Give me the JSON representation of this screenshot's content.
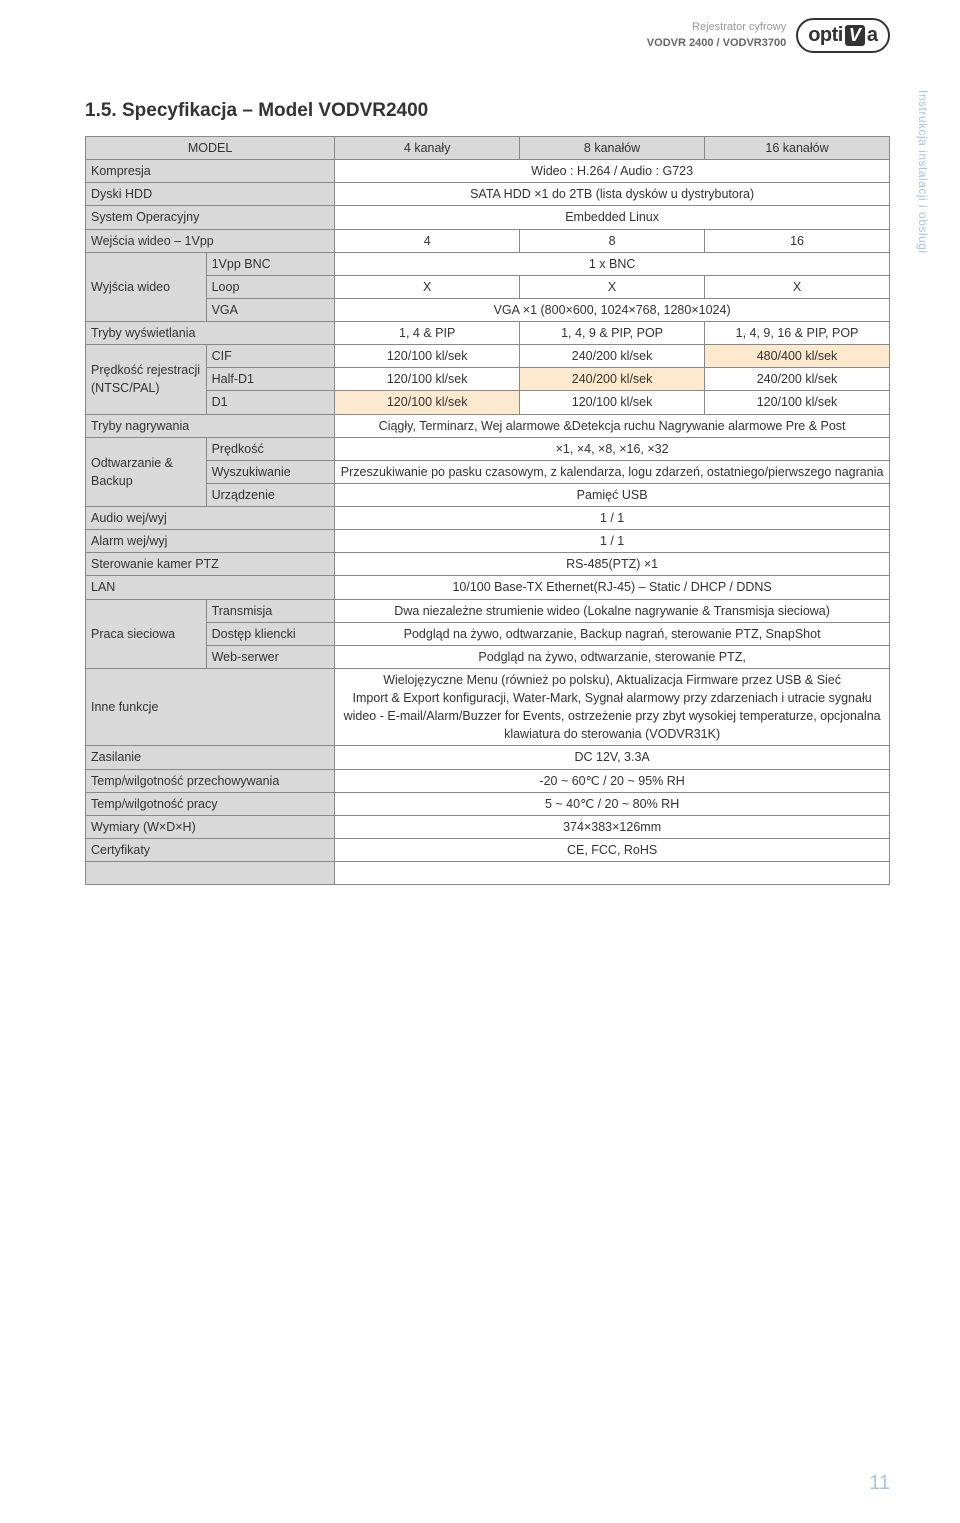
{
  "header": {
    "line1": "Rejestrator cyfrowy",
    "line2": "VODVR 2400 / VODVR3700",
    "logo_part1": "opti",
    "logo_v": "V",
    "logo_part2": "a"
  },
  "side_label": "Instrukcja instalacji i obsługi",
  "section_title": "1.5. Specyfikacja – Model VODVR2400",
  "page_number": "11",
  "colors": {
    "header_bg": "#d9d9d9",
    "highlight_bg": "#fde9ce",
    "side_text_color": "#a7c4e2",
    "border_color": "#888888",
    "text_color": "#333333"
  },
  "table": {
    "model_label": "MODEL",
    "model_cols": [
      "4 kanały",
      "8 kanałów",
      "16 kanałów"
    ],
    "rows": {
      "kompresja_label": "Kompresja",
      "kompresja_val": "Wideo : H.264 / Audio : G723",
      "dyski_label": "Dyski HDD",
      "dyski_val": "SATA HDD ×1 do 2TB (lista dysków u dystrybutora)",
      "system_label": "System Operacyjny",
      "system_val": "Embedded Linux",
      "wejscia_label": "Wejścia wideo – 1Vpp",
      "wejscia_vals": [
        "4",
        "8",
        "16"
      ],
      "wyjscia_label": "Wyjścia wideo",
      "wyjscia_sub1_label": "1Vpp BNC",
      "wyjscia_sub1_val": "1 x BNC",
      "wyjscia_sub2_label": "Loop",
      "wyjscia_sub2_vals": [
        "X",
        "X",
        "X"
      ],
      "wyjscia_sub3_label": "VGA",
      "wyjscia_sub3_val": "VGA ×1 (800×600, 1024×768, 1280×1024)",
      "tryby_label": "Tryby wyświetlania",
      "tryby_vals": [
        "1, 4 & PIP",
        "1, 4, 9 & PIP, POP",
        "1, 4, 9, 16 & PIP, POP"
      ],
      "predkosc_label": "Prędkość rejestracji (NTSC/PAL)",
      "predkosc_sub1_label": "CIF",
      "predkosc_sub1_vals": [
        "120/100 kl/sek",
        "240/200 kl/sek",
        "480/400 kl/sek"
      ],
      "predkosc_sub2_label": "Half-D1",
      "predkosc_sub2_vals": [
        "120/100 kl/sek",
        "240/200 kl/sek",
        "240/200 kl/sek"
      ],
      "predkosc_sub3_label": "D1",
      "predkosc_sub3_vals": [
        "120/100 kl/sek",
        "120/100 kl/sek",
        "120/100 kl/sek"
      ],
      "trybynag_label": "Tryby nagrywania",
      "trybynag_val": "Ciągły, Terminarz, Wej alarmowe &Detekcja ruchu Nagrywanie alarmowe Pre & Post",
      "odtw_label": "Odtwarzanie & Backup",
      "odtw_sub1_label": "Prędkość",
      "odtw_sub1_val": "×1, ×4, ×8, ×16, ×32",
      "odtw_sub2_label": "Wyszukiwanie",
      "odtw_sub2_val": "Przeszukiwanie po pasku czasowym, z kalendarza, logu zdarzeń, ostatniego/pierwszego nagrania",
      "odtw_sub3_label": "Urządzenie",
      "odtw_sub3_val": "Pamięć USB",
      "audio_label": "Audio wej/wyj",
      "audio_val": "1 / 1",
      "alarm_label": "Alarm wej/wyj",
      "alarm_val": "1 / 1",
      "ptz_label": "Sterowanie kamer PTZ",
      "ptz_val": "RS-485(PTZ) ×1",
      "lan_label": "LAN",
      "lan_val": "10/100 Base-TX Ethernet(RJ-45) – Static / DHCP / DDNS",
      "praca_label": "Praca sieciowa",
      "praca_sub1_label": "Transmisja",
      "praca_sub1_val": "Dwa niezależne strumienie wideo (Lokalne nagrywanie & Transmisja sieciowa)",
      "praca_sub2_label": "Dostęp kliencki",
      "praca_sub2_val": "Podgląd na żywo, odtwarzanie, Backup nagrań, sterowanie PTZ, SnapShot",
      "praca_sub3_label": "Web-serwer",
      "praca_sub3_val": "Podgląd na żywo, odtwarzanie, sterowanie PTZ,",
      "inne_label": "Inne funkcje",
      "inne_val": "Wielojęzyczne Menu (również po polsku), Aktualizacja Firmware przez USB & Sieć\nImport & Export konfiguracji, Water-Mark, Sygnał alarmowy przy zdarzeniach i utracie sygnału wideo - E-mail/Alarm/Buzzer for Events, ostrzeżenie przy zbyt wysokiej temperaturze, opcjonalna klawiatura do sterowania (VODVR31K)",
      "zasilanie_label": "Zasilanie",
      "zasilanie_val": "DC 12V, 3.3A",
      "tempstore_label": "Temp/wilgotność przechowywania",
      "tempstore_val": "-20 ~ 60℃ / 20 ~ 95% RH",
      "tempwork_label": "Temp/wilgotność pracy",
      "tempwork_val": "5 ~ 40℃ / 20 ~ 80% RH",
      "wymiary_label": "Wymiary (W×D×H)",
      "wymiary_val": "374×383×126mm",
      "cert_label": "Certyfikaty",
      "cert_val": "CE, FCC, RoHS"
    }
  }
}
